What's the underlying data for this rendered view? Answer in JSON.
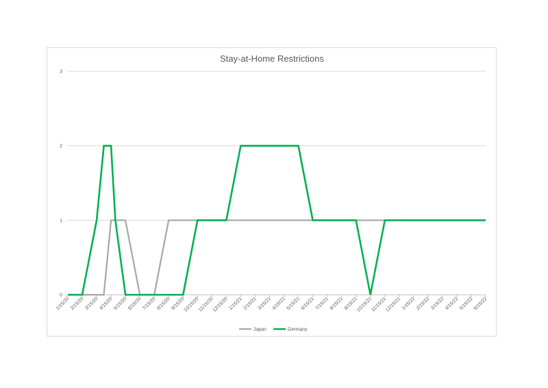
{
  "chart_data": {
    "type": "line",
    "title": "Stay-at-Home Restrictions",
    "xlabel": "",
    "ylabel": "",
    "ylim": [
      0,
      3
    ],
    "y_ticks": [
      "0",
      "1",
      "2",
      "3"
    ],
    "grid": true,
    "legend_position": "bottom",
    "categories": [
      "1/15/20",
      "2/15/20",
      "3/15/20",
      "4/15/20",
      "5/15/20",
      "6/15/20",
      "7/15/20",
      "8/15/20",
      "9/15/20",
      "10/15/20",
      "11/15/20",
      "12/15/20",
      "1/15/21",
      "2/15/21",
      "3/15/21",
      "4/15/21",
      "5/15/21",
      "6/15/21",
      "7/15/21",
      "8/15/21",
      "9/15/21",
      "10/15/21",
      "11/15/21",
      "12/15/21",
      "1/15/22",
      "2/15/22",
      "3/15/22",
      "4/15/22",
      "5/15/22",
      "6/15/22"
    ],
    "x": [
      0,
      0.5,
      1,
      1.5,
      2,
      2.5,
      2.8,
      3,
      3.3,
      4,
      4.5,
      5,
      5.5,
      6,
      6.5,
      7,
      8,
      9,
      10,
      11,
      12,
      13,
      14,
      15,
      16,
      17,
      18,
      19,
      20,
      21,
      22,
      23,
      24,
      25,
      26,
      27,
      28,
      29
    ],
    "series": [
      {
        "name": "Japan",
        "color": "#a6a6a6",
        "x": [
          0,
          2,
          2.5,
          3,
          4,
          5,
          6,
          7,
          29
        ],
        "values": [
          0,
          0,
          0,
          1,
          1,
          0,
          0,
          1,
          1
        ]
      },
      {
        "name": "Germany",
        "color": "#00b050",
        "x": [
          0,
          1,
          2,
          2.5,
          3,
          3.3,
          4,
          5,
          6,
          7,
          8,
          9,
          10,
          11,
          12,
          13,
          14,
          15,
          16,
          17,
          18,
          19,
          20,
          21,
          22,
          29
        ],
        "values": [
          0,
          0,
          1,
          2,
          2,
          1,
          0,
          0,
          0,
          0,
          0,
          1,
          1,
          1,
          2,
          2,
          2,
          2,
          2,
          1,
          1,
          1,
          1,
          0,
          1,
          1
        ]
      }
    ]
  }
}
